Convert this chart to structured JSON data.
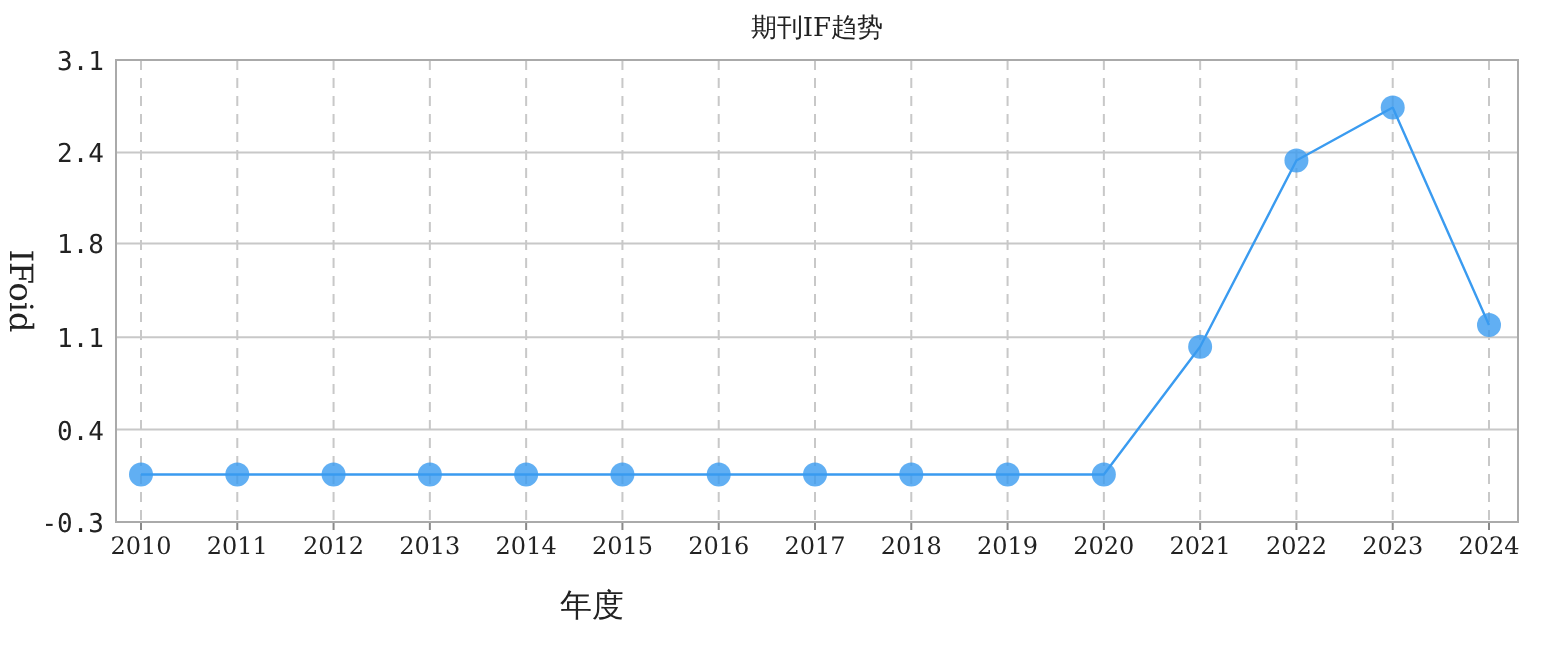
{
  "chart_data": {
    "type": "line",
    "title": "期刊IF趋势",
    "xlabel": "年度",
    "ylabel": "IFoid",
    "categories": [
      "2010",
      "2011",
      "2012",
      "2013",
      "2014",
      "2015",
      "2016",
      "2017",
      "2018",
      "2019",
      "2020",
      "2021",
      "2022",
      "2023",
      "2024"
    ],
    "series": [
      {
        "color": "#3a9bf0",
        "values": [
          0.05,
          0.05,
          0.05,
          0.05,
          0.05,
          0.05,
          0.05,
          0.05,
          0.05,
          0.05,
          0.05,
          0.99,
          2.36,
          2.75,
          1.15
        ]
      }
    ],
    "ylim": [
      -0.3,
      3.1
    ],
    "yticks": [
      -0.3,
      {
        "value": 0.38,
        "label": "0.4"
      },
      {
        "value": 1.06,
        "label": "1.1"
      },
      {
        "value": 1.75,
        "label": "1.8"
      },
      {
        "value": 2.42,
        "label": "2.4"
      },
      3.1
    ],
    "grid": true,
    "marker": "circle",
    "line_style": "solid"
  }
}
